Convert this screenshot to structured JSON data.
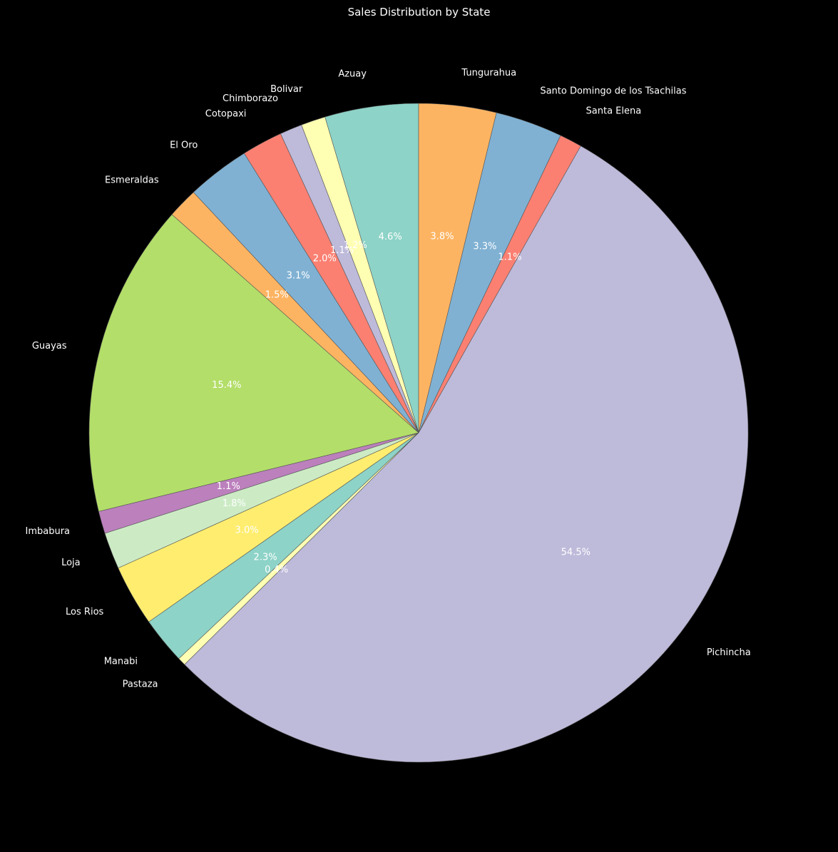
{
  "chart_data": {
    "type": "pie",
    "title": "Sales Distribution by State",
    "legend": "none",
    "start_angle_deg": 90,
    "direction": "counterclockwise",
    "slice_edge_color": "#555555",
    "slices": [
      {
        "label": "Azuay",
        "percent": 4.6,
        "pct_label": "4.6%",
        "color": "#8dd3c7"
      },
      {
        "label": "Bolivar",
        "percent": 1.2,
        "pct_label": "1.2%",
        "color": "#ffffb3"
      },
      {
        "label": "Chimborazo",
        "percent": 1.1,
        "pct_label": "1.1%",
        "color": "#bebada"
      },
      {
        "label": "Cotopaxi",
        "percent": 2.0,
        "pct_label": "2.0%",
        "color": "#fb8072"
      },
      {
        "label": "El Oro",
        "percent": 3.1,
        "pct_label": "3.1%",
        "color": "#80b1d3"
      },
      {
        "label": "Esmeraldas",
        "percent": 1.5,
        "pct_label": "1.5%",
        "color": "#fdb462"
      },
      {
        "label": "Guayas",
        "percent": 15.4,
        "pct_label": "15.4%",
        "color": "#b3de69"
      },
      {
        "label": "Imbabura",
        "percent": 1.1,
        "pct_label": "1.1%",
        "color": "#bc80bd"
      },
      {
        "label": "Loja",
        "percent": 1.8,
        "pct_label": "1.8%",
        "color": "#ccebc5"
      },
      {
        "label": "Los Rios",
        "percent": 3.0,
        "pct_label": "3.0%",
        "color": "#ffed6f"
      },
      {
        "label": "Manabi",
        "percent": 2.3,
        "pct_label": "2.3%",
        "color": "#8dd3c7"
      },
      {
        "label": "Pastaza",
        "percent": 0.4,
        "pct_label": "0.4%",
        "color": "#ffffb3"
      },
      {
        "label": "Pichincha",
        "percent": 54.5,
        "pct_label": "54.5%",
        "color": "#bebada"
      },
      {
        "label": "Santa Elena",
        "percent": 1.1,
        "pct_label": "1.1%",
        "color": "#fb8072"
      },
      {
        "label": "Santo Domingo de los Tsachilas",
        "percent": 3.3,
        "pct_label": "3.3%",
        "color": "#80b1d3"
      },
      {
        "label": "Tungurahua",
        "percent": 3.8,
        "pct_label": "3.8%",
        "color": "#fdb462"
      }
    ]
  }
}
